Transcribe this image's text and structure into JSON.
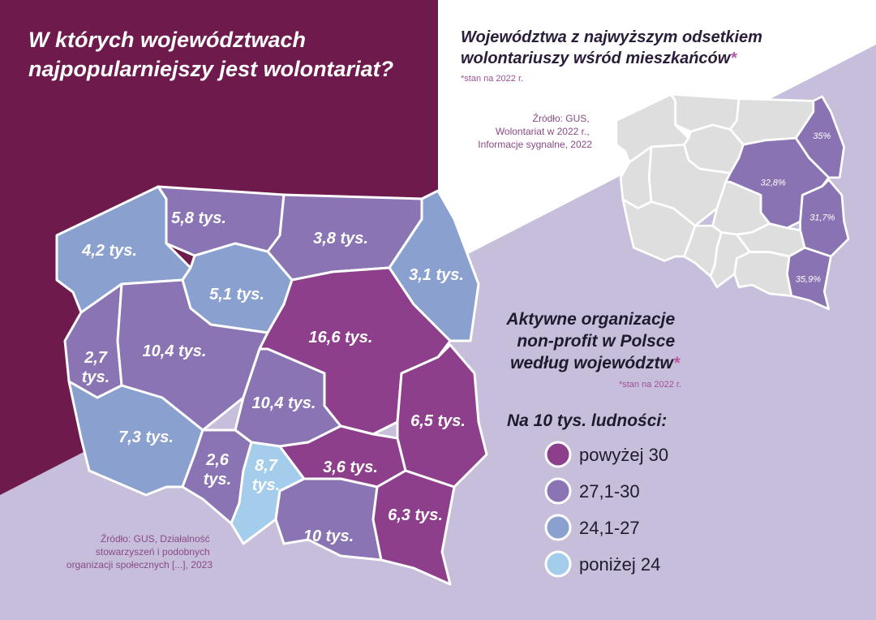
{
  "title": {
    "lines": [
      "W których województwach",
      "najpopularniejszy jest wolontariat?"
    ]
  },
  "side_map": {
    "title": {
      "lines": [
        "Województwa z najwyższym odsetkiem",
        "wolontariuszy wśród mieszkańców"
      ],
      "asterisk": "*"
    },
    "note": "*stan na 2022 r.",
    "source": {
      "lines": [
        "Źródło: GUS,",
        "Wolontariat w 2022 r.,",
        "Informacje sygnalne, 2022"
      ]
    },
    "base_color": "#dedede",
    "highlights": [
      {
        "label": "35%",
        "color": "#8a73b3"
      },
      {
        "label": "32,8%",
        "color": "#8a73b3"
      },
      {
        "label": "31,7%",
        "color": "#8a73b3"
      },
      {
        "label": "35,9%",
        "color": "#8a73b3"
      }
    ]
  },
  "org_title": {
    "lines": [
      "Aktywne organizacje",
      "non-profit w Polsce",
      "według województw"
    ],
    "asterisk": "*",
    "note": "*stan na 2022 r."
  },
  "legend": {
    "title": "Na 10 tys. ludności:",
    "items": [
      {
        "label": "powyżej 30",
        "color": "#8e3f8b"
      },
      {
        "label": "27,1-30",
        "color": "#8a74b4"
      },
      {
        "label": "24,1-27",
        "color": "#8aa0cf"
      },
      {
        "label": "poniżej 24",
        "color": "#a3cdea"
      }
    ]
  },
  "main_map": {
    "regions": [
      {
        "label": [
          "4,2 tys."
        ],
        "color": "#8aa0cf"
      },
      {
        "label": [
          "5,8 tys."
        ],
        "color": "#8a74b4"
      },
      {
        "label": [
          "3,8 tys."
        ],
        "color": "#8a74b4"
      },
      {
        "label": [
          "3,1 tys."
        ],
        "color": "#8aa0cf"
      },
      {
        "label": [
          "5,1 tys."
        ],
        "color": "#8aa0cf"
      },
      {
        "label": [
          "2,7",
          "tys."
        ],
        "color": "#8a74b4"
      },
      {
        "label": [
          "10,4 tys."
        ],
        "color": "#8a74b4"
      },
      {
        "label": [
          "16,6 tys."
        ],
        "color": "#8e3f8b"
      },
      {
        "label": [
          "10,4 tys."
        ],
        "color": "#8a74b4"
      },
      {
        "label": [
          "6,5 tys."
        ],
        "color": "#8e3f8b"
      },
      {
        "label": [
          "7,3 tys."
        ],
        "color": "#8aa0cf"
      },
      {
        "label": [
          "2,6",
          "tys."
        ],
        "color": "#8a74b4"
      },
      {
        "label": [
          "8,7",
          "tys."
        ],
        "color": "#a3cdea"
      },
      {
        "label": [
          "3,6 tys."
        ],
        "color": "#8e3f8b"
      },
      {
        "label": [
          "10 tys."
        ],
        "color": "#8a74b4"
      },
      {
        "label": [
          "6,3 tys."
        ],
        "color": "#8e3f8b"
      }
    ],
    "source": {
      "lines": [
        "Źródło: GUS, Działalność",
        "stowarzyszeń i podobnych",
        "organizacji społecznych [...], 2023"
      ]
    }
  }
}
